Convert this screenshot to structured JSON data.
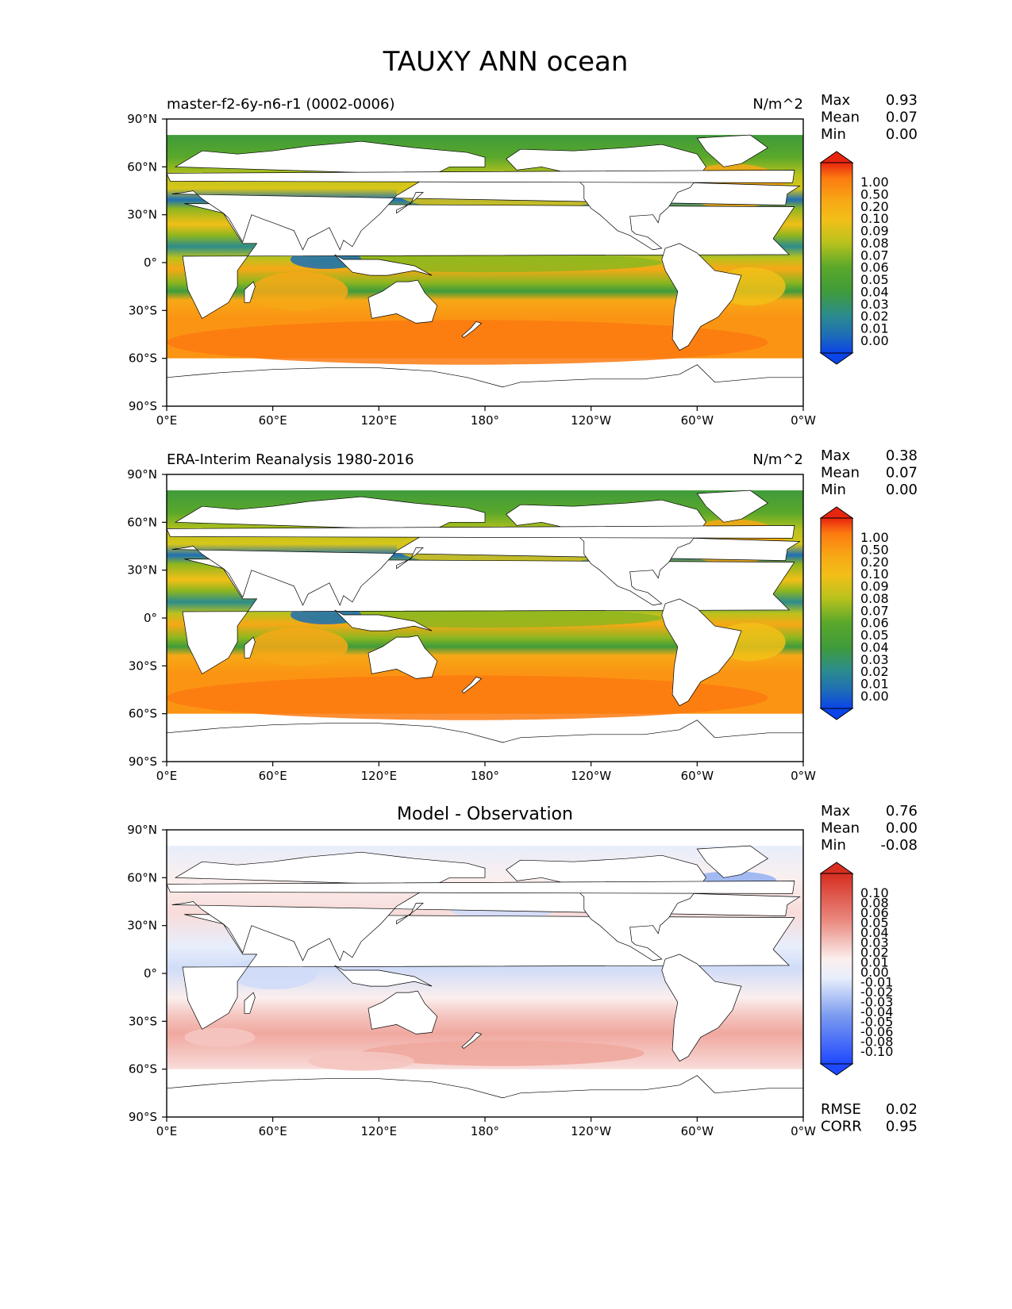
{
  "figure": {
    "title": "TAUXY ANN ocean"
  },
  "colors": {
    "land": "#ffffff",
    "coast": "#000000",
    "seq_palette": [
      "#0b44e8",
      "#1f6fb4",
      "#2c8c8c",
      "#3f9b3b",
      "#5aa82b",
      "#8db61f",
      "#b9c21d",
      "#d8c61a",
      "#f2bf17",
      "#f7a816",
      "#fb9413",
      "#fc7a10",
      "#f24a16",
      "#e8250f"
    ],
    "diff_palette": [
      "#1f48ff",
      "#3a64f2",
      "#5a80ec",
      "#7a9aef",
      "#98b2f2",
      "#b5c8f5",
      "#d0dcf8",
      "#e7eefb",
      "#fbefee",
      "#f8dcda",
      "#f5c5c0",
      "#f0a89f",
      "#ea8a80",
      "#e46a5f",
      "#dd4a3f",
      "#d62e20"
    ]
  },
  "panels": [
    {
      "left_title": "master-f2-6y-n6-r1 (0002-0006)",
      "center_title": "",
      "units": "N/m^2",
      "stats": [
        {
          "label": "Max",
          "value": "0.93"
        },
        {
          "label": "Mean",
          "value": "0.07"
        },
        {
          "label": "Min",
          "value": "0.00"
        }
      ],
      "colorbar_labels": [
        "1.00",
        "0.50",
        "0.20",
        "0.10",
        "0.09",
        "0.08",
        "0.07",
        "0.06",
        "0.05",
        "0.04",
        "0.03",
        "0.02",
        "0.01",
        "0.00"
      ],
      "bottom_stats": []
    },
    {
      "left_title": "ERA-Interim Reanalysis 1980-2016",
      "center_title": "",
      "units": "N/m^2",
      "stats": [
        {
          "label": "Max",
          "value": "0.38"
        },
        {
          "label": "Mean",
          "value": "0.07"
        },
        {
          "label": "Min",
          "value": "0.00"
        }
      ],
      "colorbar_labels": [
        "1.00",
        "0.50",
        "0.20",
        "0.10",
        "0.09",
        "0.08",
        "0.07",
        "0.06",
        "0.05",
        "0.04",
        "0.03",
        "0.02",
        "0.01",
        "0.00"
      ],
      "bottom_stats": []
    },
    {
      "left_title": "",
      "center_title": "Model - Observation",
      "units": "",
      "stats": [
        {
          "label": "Max",
          "value": "0.76"
        },
        {
          "label": "Mean",
          "value": "0.00"
        },
        {
          "label": "Min",
          "value": "-0.08"
        }
      ],
      "colorbar_labels": [
        "0.10",
        "0.08",
        "0.06",
        "0.05",
        "0.04",
        "0.03",
        "0.02",
        "0.01",
        "0.00",
        "-0.01",
        "-0.02",
        "-0.03",
        "-0.04",
        "-0.05",
        "-0.06",
        "-0.08",
        "-0.10"
      ],
      "bottom_stats": [
        {
          "label": "RMSE",
          "value": "0.02"
        },
        {
          "label": "CORR",
          "value": "0.95"
        }
      ]
    }
  ],
  "chart_data": [
    {
      "type": "heatmap",
      "title": "master-f2-6y-n6-r1 (0002-0006)",
      "variable": "TAUXY ANN ocean",
      "units": "N/m^2",
      "x_ticks": [
        "0°E",
        "60°E",
        "120°E",
        "180°",
        "120°W",
        "60°W",
        "0°W"
      ],
      "y_ticks": [
        "90°N",
        "60°N",
        "30°N",
        "0°",
        "30°S",
        "60°S",
        "90°S"
      ],
      "xlim": [
        0,
        360
      ],
      "ylim": [
        -90,
        90
      ],
      "color_levels": [
        0.0,
        0.01,
        0.02,
        0.03,
        0.04,
        0.05,
        0.06,
        0.07,
        0.08,
        0.09,
        0.1,
        0.2,
        0.5,
        1.0
      ],
      "stats": {
        "max": 0.93,
        "mean": 0.07,
        "min": 0.0
      }
    },
    {
      "type": "heatmap",
      "title": "ERA-Interim Reanalysis 1980-2016",
      "variable": "TAUXY ANN ocean",
      "units": "N/m^2",
      "x_ticks": [
        "0°E",
        "60°E",
        "120°E",
        "180°",
        "120°W",
        "60°W",
        "0°W"
      ],
      "y_ticks": [
        "90°N",
        "60°N",
        "30°N",
        "0°",
        "30°S",
        "60°S",
        "90°S"
      ],
      "xlim": [
        0,
        360
      ],
      "ylim": [
        -90,
        90
      ],
      "color_levels": [
        0.0,
        0.01,
        0.02,
        0.03,
        0.04,
        0.05,
        0.06,
        0.07,
        0.08,
        0.09,
        0.1,
        0.2,
        0.5,
        1.0
      ],
      "stats": {
        "max": 0.38,
        "mean": 0.07,
        "min": 0.0
      }
    },
    {
      "type": "heatmap",
      "title": "Model - Observation",
      "variable": "TAUXY ANN ocean",
      "x_ticks": [
        "0°E",
        "60°E",
        "120°E",
        "180°",
        "120°W",
        "60°W",
        "0°W"
      ],
      "y_ticks": [
        "90°N",
        "60°N",
        "30°N",
        "0°",
        "30°S",
        "60°S",
        "90°S"
      ],
      "xlim": [
        0,
        360
      ],
      "ylim": [
        -90,
        90
      ],
      "color_levels": [
        -0.1,
        -0.08,
        -0.06,
        -0.05,
        -0.04,
        -0.03,
        -0.02,
        -0.01,
        0.0,
        0.01,
        0.02,
        0.03,
        0.04,
        0.05,
        0.06,
        0.08,
        0.1
      ],
      "stats": {
        "max": 0.76,
        "mean": 0.0,
        "min": -0.08,
        "rmse": 0.02,
        "corr": 0.95
      }
    }
  ]
}
